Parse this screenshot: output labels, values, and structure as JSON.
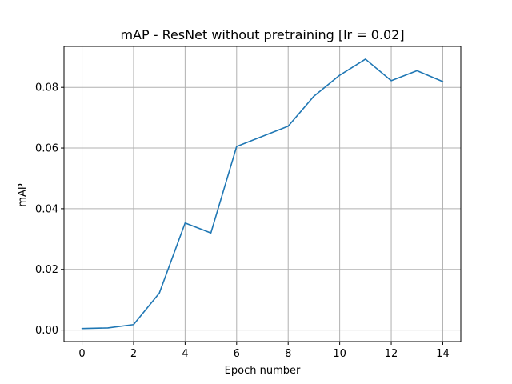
{
  "chart_data": {
    "type": "line",
    "title": "mAP - ResNet without pretraining [lr = 0.02]",
    "xlabel": "Epoch number",
    "ylabel": "mAP",
    "xlim": [
      -0.7,
      14.7
    ],
    "ylim": [
      -0.0038,
      0.0935
    ],
    "x_ticks": [
      0,
      2,
      4,
      6,
      8,
      10,
      12,
      14
    ],
    "x_tick_labels": [
      "0",
      "2",
      "4",
      "6",
      "8",
      "10",
      "12",
      "14"
    ],
    "y_ticks": [
      0.0,
      0.02,
      0.04,
      0.06,
      0.08
    ],
    "y_tick_labels": [
      "0.00",
      "0.02",
      "0.04",
      "0.06",
      "0.08"
    ],
    "grid": true,
    "legend": "none",
    "series": [
      {
        "color": "#1f77b4",
        "x": [
          0,
          1,
          2,
          3,
          4,
          5,
          6,
          8,
          9,
          10,
          11,
          12,
          13,
          14
        ],
        "y": [
          0.0005,
          0.0007,
          0.0018,
          0.0122,
          0.0353,
          0.032,
          0.0605,
          0.0672,
          0.0771,
          0.084,
          0.0893,
          0.0822,
          0.0855,
          0.0819
        ]
      }
    ]
  }
}
